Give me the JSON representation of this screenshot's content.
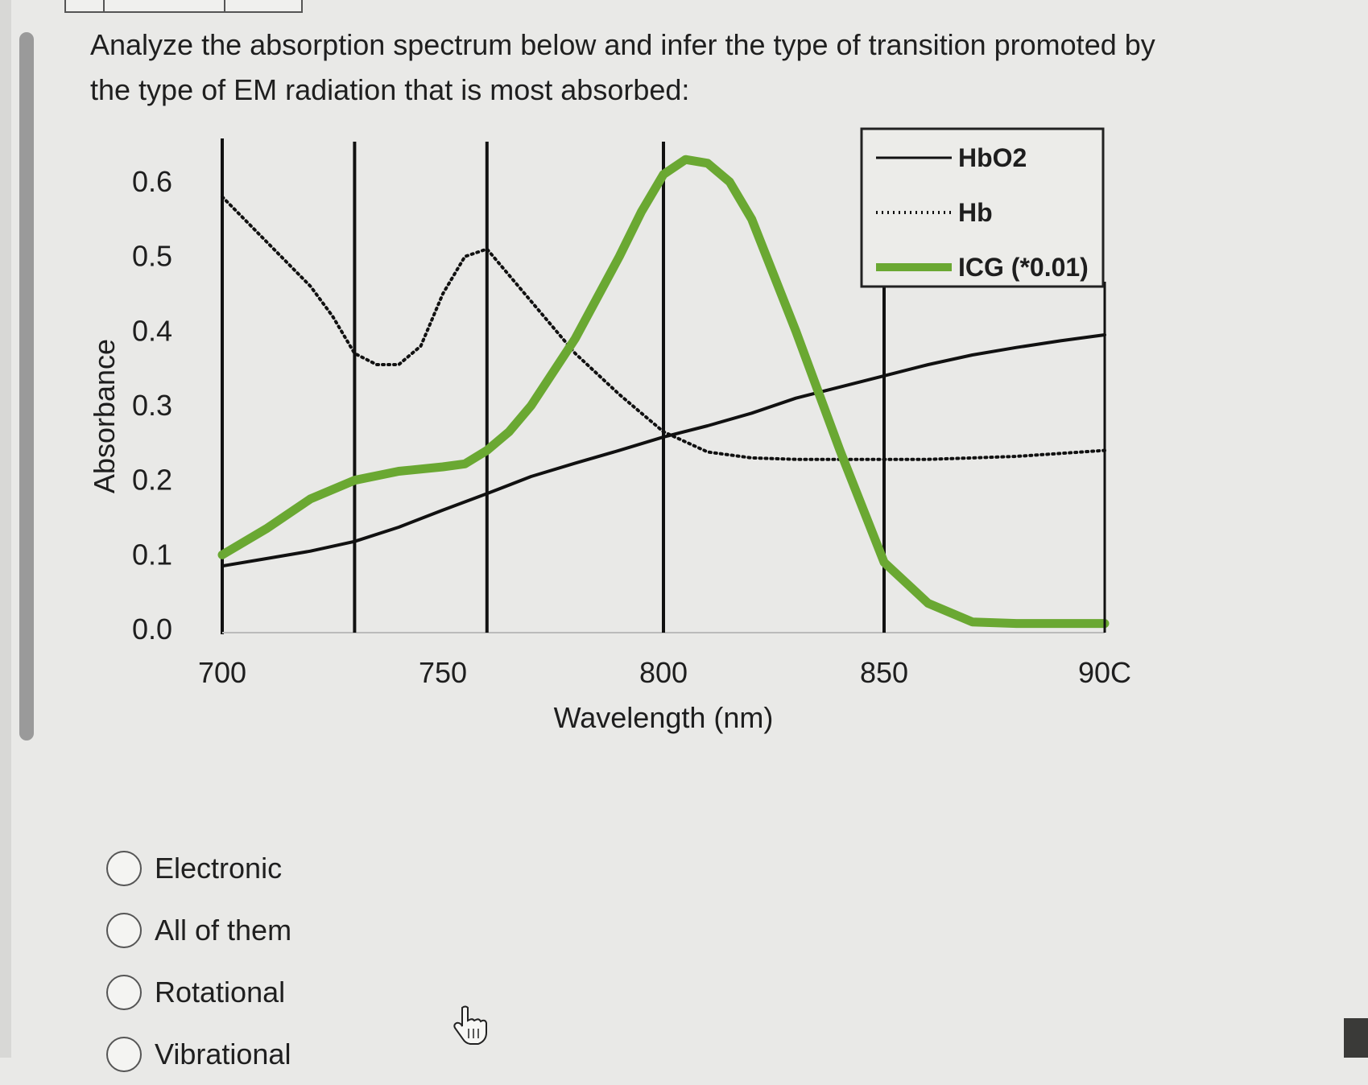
{
  "question": {
    "text": "Analyze the absorption spectrum below and infer the type of transition promoted by the type of EM radiation that is most absorbed:"
  },
  "chart_data": {
    "type": "line",
    "xlabel": "Wavelength (nm)",
    "ylabel": "Absorbance",
    "xlim": [
      700,
      900
    ],
    "ylim": [
      0.0,
      0.65
    ],
    "x_ticks": [
      "700",
      "750",
      "800",
      "850",
      "90C"
    ],
    "y_ticks": [
      "0.6",
      "0.5",
      "0.4",
      "0.3",
      "0.2",
      "0.1",
      "0.0"
    ],
    "vertical_lines_x": [
      730,
      760,
      800,
      850
    ],
    "legend_position": "top-right",
    "legend": [
      "HbO2",
      "Hb",
      "ICG (*0.01)"
    ],
    "series": [
      {
        "name": "HbO2",
        "style": "solid",
        "color": "#111111",
        "x": [
          700,
          710,
          720,
          730,
          740,
          750,
          760,
          770,
          780,
          790,
          800,
          810,
          820,
          830,
          840,
          850,
          860,
          870,
          880,
          890,
          900
        ],
        "y": [
          0.085,
          0.095,
          0.105,
          0.118,
          0.137,
          0.16,
          0.182,
          0.205,
          0.223,
          0.24,
          0.258,
          0.273,
          0.29,
          0.31,
          0.325,
          0.34,
          0.355,
          0.368,
          0.378,
          0.387,
          0.395
        ]
      },
      {
        "name": "Hb",
        "style": "dotted",
        "color": "#111111",
        "x": [
          700,
          710,
          720,
          725,
          730,
          735,
          740,
          745,
          750,
          755,
          760,
          770,
          780,
          790,
          795,
          800,
          810,
          820,
          830,
          840,
          850,
          860,
          870,
          880,
          890,
          900
        ],
        "y": [
          0.58,
          0.52,
          0.46,
          0.42,
          0.37,
          0.355,
          0.355,
          0.38,
          0.45,
          0.5,
          0.51,
          0.44,
          0.37,
          0.315,
          0.29,
          0.265,
          0.238,
          0.23,
          0.228,
          0.228,
          0.228,
          0.228,
          0.23,
          0.232,
          0.236,
          0.24
        ]
      },
      {
        "name": "ICG (*0.01)",
        "style": "solid-thick",
        "color": "#6aa832",
        "x": [
          700,
          710,
          720,
          730,
          740,
          750,
          755,
          760,
          765,
          770,
          780,
          790,
          795,
          800,
          805,
          810,
          815,
          820,
          830,
          840,
          850,
          860,
          870,
          880,
          890,
          900
        ],
        "y": [
          0.1,
          0.135,
          0.175,
          0.2,
          0.212,
          0.218,
          0.222,
          0.24,
          0.265,
          0.3,
          0.39,
          0.5,
          0.56,
          0.61,
          0.63,
          0.625,
          0.6,
          0.55,
          0.4,
          0.24,
          0.09,
          0.035,
          0.01,
          0.008,
          0.008,
          0.008
        ]
      }
    ]
  },
  "options": [
    {
      "label": "Electronic"
    },
    {
      "label": "All of them"
    },
    {
      "label": "Rotational"
    },
    {
      "label": "Vibrational"
    }
  ],
  "icons": {
    "cursor": "hand-pointer-icon"
  }
}
